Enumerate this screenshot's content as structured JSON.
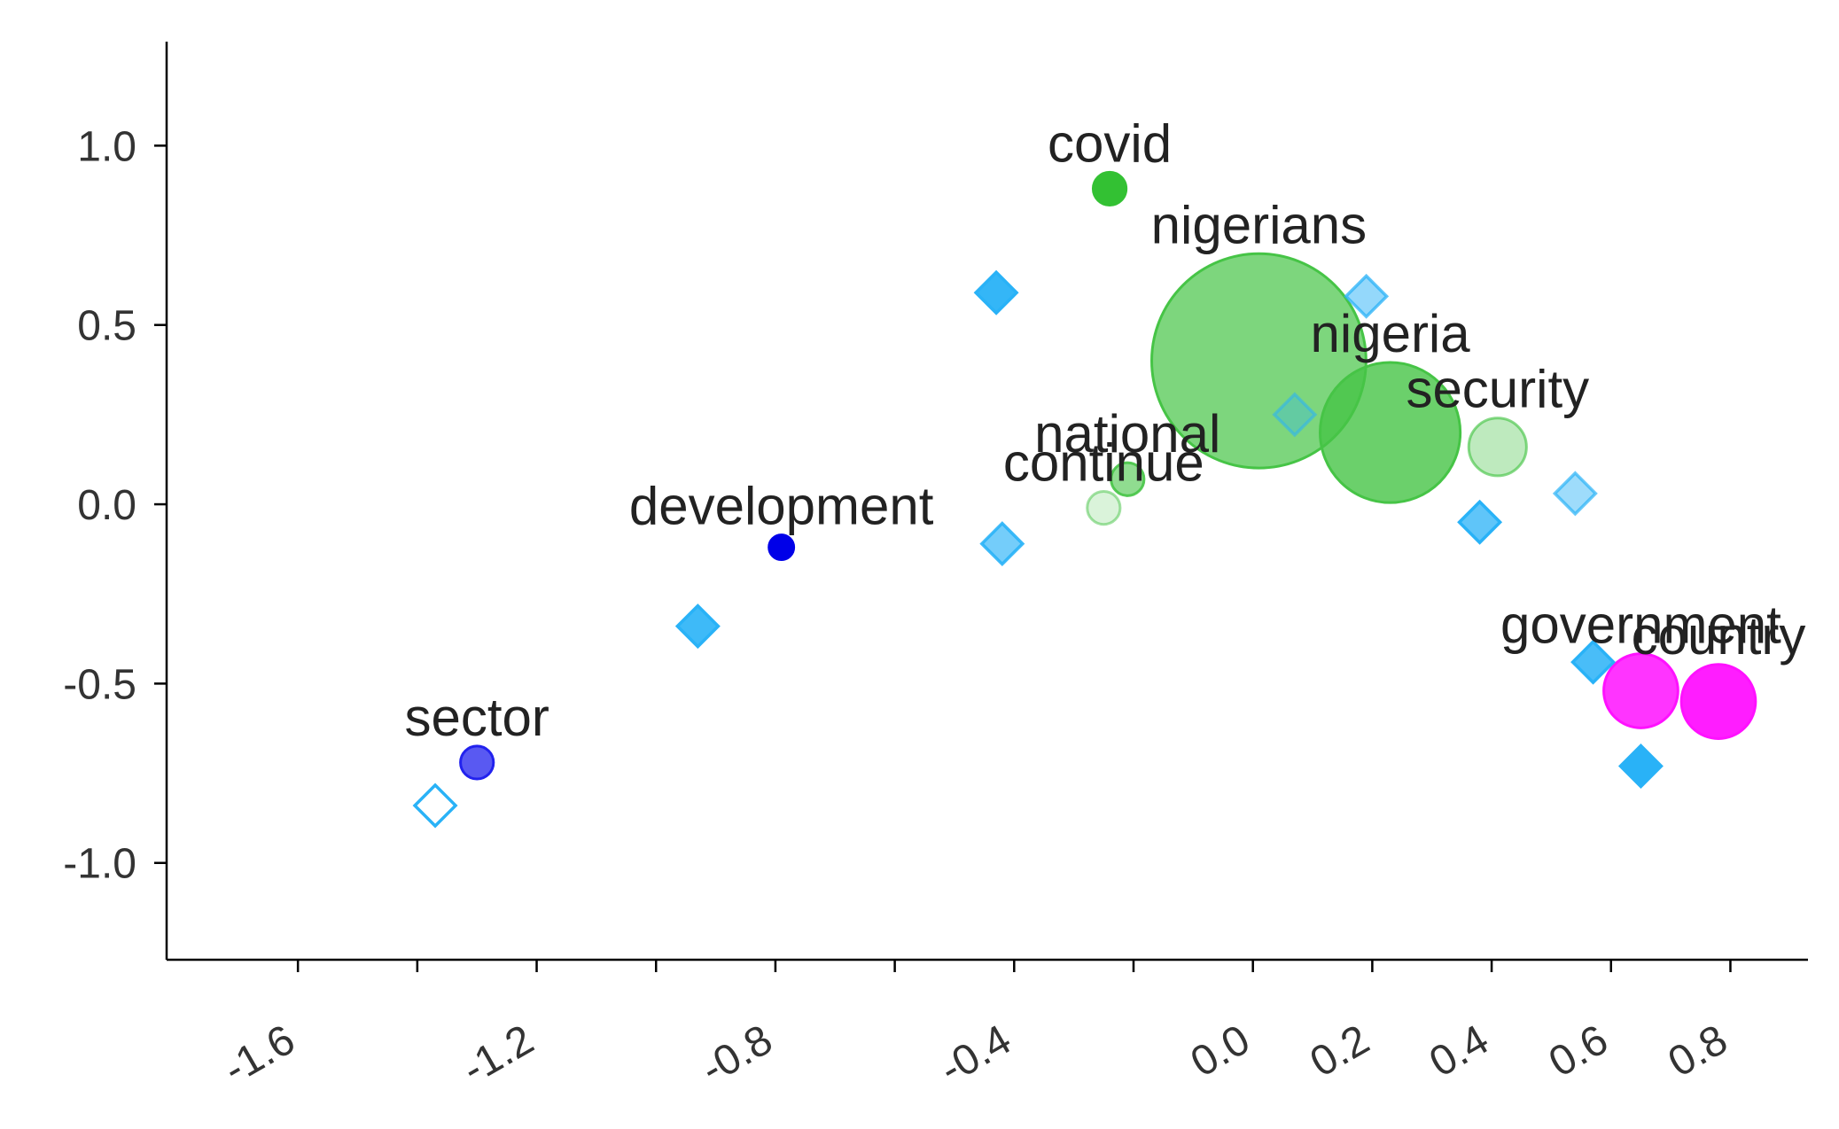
{
  "chart_data": {
    "type": "scatter",
    "title": "",
    "xlabel": "",
    "ylabel": "",
    "xlim": [
      -1.82,
      0.93
    ],
    "ylim": [
      -1.27,
      1.29
    ],
    "grid": false,
    "x_ticks": [
      -1.6,
      -1.4,
      -1.2,
      -1.0,
      -0.8,
      -0.6,
      -0.4,
      -0.2,
      0.0,
      0.2,
      0.4,
      0.6,
      0.8
    ],
    "x_tick_labels": [
      "-1.6",
      "",
      "-1.2",
      "",
      "-0.8",
      "",
      "-0.4",
      "",
      "0.0",
      "0.2",
      "0.4",
      "0.6",
      "0.8"
    ],
    "y_ticks": [
      1.0,
      0.5,
      0.0,
      -0.5,
      -1.0
    ],
    "y_tick_labels": [
      "1.0",
      "0.5",
      "0.0",
      "-0.5",
      "-1.0"
    ],
    "circles": [
      {
        "label": "covid",
        "x": -0.24,
        "y": 0.88,
        "size": 4,
        "color": "#33c133",
        "opacity": 1.0,
        "stroke_only": false
      },
      {
        "label": "nigerians",
        "x": 0.01,
        "y": 0.4,
        "size": 26,
        "color": "#46c446",
        "opacity": 0.7,
        "stroke_only": false
      },
      {
        "label": "nigeria",
        "x": 0.23,
        "y": 0.2,
        "size": 17,
        "color": "#46c446",
        "opacity": 0.8,
        "stroke_only": false
      },
      {
        "label": "security",
        "x": 0.41,
        "y": 0.16,
        "size": 7,
        "color": "#46c446",
        "opacity": 0.35,
        "stroke_only": false
      },
      {
        "label": "national",
        "x": -0.21,
        "y": 0.07,
        "size": 4,
        "color": "#46c446",
        "opacity": 0.6,
        "stroke_only": false
      },
      {
        "label": "continue",
        "x": -0.25,
        "y": -0.01,
        "size": 4,
        "color": "#46c446",
        "opacity": 0.2,
        "stroke_only": false
      },
      {
        "label": "development",
        "x": -0.79,
        "y": -0.12,
        "size": 3,
        "color": "#0000e8",
        "opacity": 1.0,
        "stroke_only": false
      },
      {
        "label": "sector",
        "x": -1.3,
        "y": -0.72,
        "size": 4,
        "color": "#2222ee",
        "opacity": 0.75,
        "stroke_only": false
      },
      {
        "label": "government",
        "x": 0.65,
        "y": -0.52,
        "size": 9,
        "color": "#ff11ff",
        "opacity": 0.85,
        "stroke_only": false
      },
      {
        "label": "country",
        "x": 0.78,
        "y": -0.55,
        "size": 9,
        "color": "#ff11ff",
        "opacity": 0.95,
        "stroke_only": false
      }
    ],
    "diamonds": [
      {
        "x": -0.43,
        "y": 0.59,
        "color": "#29b2f7",
        "opacity": 0.95,
        "stroke_only": false
      },
      {
        "x": 0.19,
        "y": 0.58,
        "color": "#29b2f7",
        "opacity": 0.5,
        "stroke_only": false
      },
      {
        "x": 0.07,
        "y": 0.25,
        "color": "#29b2f7",
        "opacity": 0.3,
        "stroke_only": false
      },
      {
        "x": 0.38,
        "y": -0.05,
        "color": "#29b2f7",
        "opacity": 0.75,
        "stroke_only": false
      },
      {
        "x": 0.54,
        "y": 0.03,
        "color": "#29b2f7",
        "opacity": 0.45,
        "stroke_only": false
      },
      {
        "x": -0.42,
        "y": -0.11,
        "color": "#29b2f7",
        "opacity": 0.65,
        "stroke_only": false
      },
      {
        "x": -0.93,
        "y": -0.34,
        "color": "#29b2f7",
        "opacity": 0.9,
        "stroke_only": false
      },
      {
        "x": 0.57,
        "y": -0.44,
        "color": "#29b2f7",
        "opacity": 0.85,
        "stroke_only": false
      },
      {
        "x": 0.65,
        "y": -0.73,
        "color": "#29b2f7",
        "opacity": 1.0,
        "stroke_only": false
      },
      {
        "x": -1.37,
        "y": -0.84,
        "color": "#29b2f7",
        "opacity": 1.0,
        "stroke_only": true
      }
    ]
  }
}
